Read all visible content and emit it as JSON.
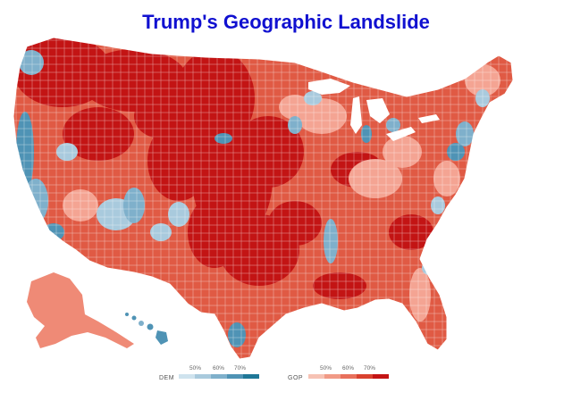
{
  "title": "Trump's Geographic Landslide",
  "legend": {
    "dem": {
      "label": "DEM",
      "ticks": [
        "50%",
        "60%",
        "70%"
      ],
      "colors": [
        "#cfe3ee",
        "#a9cadd",
        "#7fb0cb",
        "#4f93b5",
        "#1f7797"
      ]
    },
    "gop": {
      "label": "GOP",
      "ticks": [
        "50%",
        "60%",
        "70%"
      ],
      "colors": [
        "#f6c2b4",
        "#f19a86",
        "#e8705c",
        "#d9422f",
        "#c31414"
      ]
    }
  },
  "colors": {
    "title": "#1010d0",
    "gop_strong": "#c31414",
    "gop_medium": "#e05a44",
    "gop_light": "#f4a493",
    "dem_light": "#a9cadd",
    "dem_strong": "#4f93b5",
    "water": "#ffffff"
  },
  "regions": [
    "contiguous-us",
    "alaska",
    "hawaii"
  ]
}
